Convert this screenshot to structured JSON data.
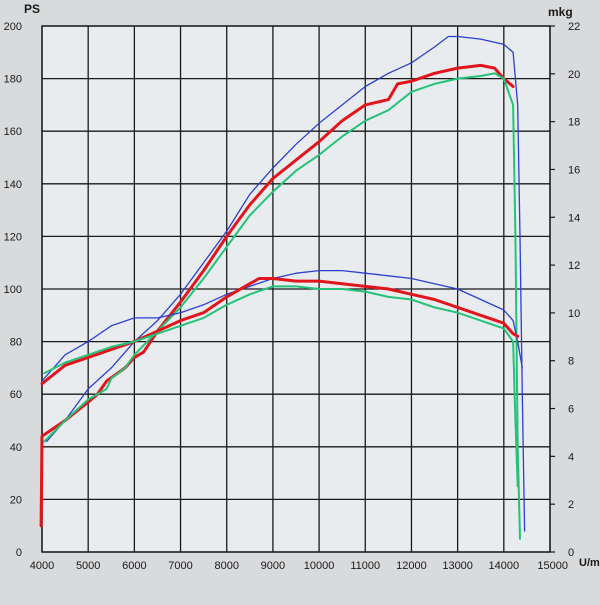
{
  "chart_data": {
    "type": "line",
    "left_axis_unit": "PS",
    "right_axis_unit": "mkg",
    "x_unit": "U/min",
    "x_ticks": [
      "4000",
      "5000",
      "6000",
      "7000",
      "8000",
      "9000",
      "10000",
      "11000",
      "12000",
      "13000",
      "14000",
      "15000"
    ],
    "y_left_ticks": [
      "0",
      "20",
      "40",
      "60",
      "80",
      "100",
      "120",
      "140",
      "160",
      "180",
      "200"
    ],
    "y_right_ticks": [
      "0",
      "2",
      "4",
      "6",
      "8",
      "10",
      "12",
      "14",
      "16",
      "18",
      "20",
      "22"
    ],
    "xlim": [
      4000,
      15000
    ],
    "ylim_left": [
      0,
      200
    ],
    "ylim_right": [
      0,
      22
    ],
    "grid": true,
    "colors": {
      "blue": "#2c3fd0",
      "red": "#e0161c",
      "green": "#25c27a",
      "grid": "#1a1a1a",
      "plot_bg": "#e9ecee"
    },
    "series": [
      {
        "color": "blue",
        "width": 1.3,
        "axis": "left",
        "points": [
          [
            4100,
            42
          ],
          [
            4500,
            50
          ],
          [
            5000,
            62
          ],
          [
            5500,
            70
          ],
          [
            6000,
            80
          ],
          [
            6500,
            88
          ],
          [
            7000,
            98
          ],
          [
            7500,
            110
          ],
          [
            8000,
            122
          ],
          [
            8500,
            136
          ],
          [
            9000,
            146
          ],
          [
            9500,
            155
          ],
          [
            10000,
            163
          ],
          [
            10500,
            170
          ],
          [
            11000,
            177
          ],
          [
            11500,
            182
          ],
          [
            12000,
            186
          ],
          [
            12500,
            192
          ],
          [
            12800,
            196
          ],
          [
            13000,
            196
          ],
          [
            13500,
            195
          ],
          [
            14000,
            193
          ],
          [
            14200,
            190
          ],
          [
            14300,
            170
          ],
          [
            14350,
            120
          ],
          [
            14400,
            60
          ],
          [
            14450,
            8
          ]
        ]
      },
      {
        "color": "red",
        "width": 3,
        "axis": "left",
        "points": [
          [
            3980,
            10
          ],
          [
            4000,
            44
          ],
          [
            4500,
            50
          ],
          [
            5000,
            57
          ],
          [
            5200,
            60
          ],
          [
            5400,
            65
          ],
          [
            5800,
            70
          ],
          [
            6000,
            74
          ],
          [
            6200,
            76
          ],
          [
            6500,
            84
          ],
          [
            7000,
            95
          ],
          [
            7500,
            107
          ],
          [
            8000,
            120
          ],
          [
            8500,
            132
          ],
          [
            9000,
            142
          ],
          [
            9500,
            149
          ],
          [
            10000,
            156
          ],
          [
            10500,
            164
          ],
          [
            11000,
            170
          ],
          [
            11500,
            172
          ],
          [
            11700,
            178
          ],
          [
            12000,
            179
          ],
          [
            12500,
            182
          ],
          [
            13000,
            184
          ],
          [
            13500,
            185
          ],
          [
            13800,
            184
          ],
          [
            14000,
            180
          ],
          [
            14200,
            177
          ]
        ]
      },
      {
        "color": "green",
        "width": 2,
        "axis": "left",
        "points": [
          [
            4050,
            42
          ],
          [
            4500,
            50
          ],
          [
            5000,
            58
          ],
          [
            5400,
            62
          ],
          [
            5500,
            66
          ],
          [
            5800,
            70
          ],
          [
            6000,
            75
          ],
          [
            6500,
            84
          ],
          [
            7000,
            93
          ],
          [
            7500,
            104
          ],
          [
            8000,
            116
          ],
          [
            8500,
            128
          ],
          [
            9000,
            137
          ],
          [
            9500,
            145
          ],
          [
            10000,
            151
          ],
          [
            10500,
            158
          ],
          [
            11000,
            164
          ],
          [
            11500,
            168
          ],
          [
            12000,
            175
          ],
          [
            12500,
            178
          ],
          [
            13000,
            180
          ],
          [
            13500,
            181
          ],
          [
            13800,
            182
          ],
          [
            14000,
            180
          ],
          [
            14200,
            170
          ],
          [
            14250,
            120
          ],
          [
            14300,
            40
          ],
          [
            14350,
            5
          ]
        ]
      },
      {
        "color": "blue",
        "width": 1.3,
        "axis": "left",
        "points": [
          [
            4000,
            65
          ],
          [
            4500,
            75
          ],
          [
            5000,
            80
          ],
          [
            5500,
            86
          ],
          [
            6000,
            89
          ],
          [
            6500,
            89
          ],
          [
            7000,
            91
          ],
          [
            7500,
            94
          ],
          [
            8000,
            98
          ],
          [
            8500,
            101
          ],
          [
            9000,
            104
          ],
          [
            9500,
            106
          ],
          [
            10000,
            107
          ],
          [
            10500,
            107
          ],
          [
            11000,
            106
          ],
          [
            11500,
            105
          ],
          [
            12000,
            104
          ],
          [
            12500,
            102
          ],
          [
            13000,
            100
          ],
          [
            13500,
            96
          ],
          [
            14000,
            92
          ],
          [
            14200,
            88
          ],
          [
            14300,
            80
          ],
          [
            14400,
            70
          ]
        ]
      },
      {
        "color": "red",
        "width": 3,
        "axis": "left",
        "points": [
          [
            4000,
            64
          ],
          [
            4500,
            71
          ],
          [
            5000,
            74
          ],
          [
            5500,
            77
          ],
          [
            6000,
            80
          ],
          [
            6500,
            84
          ],
          [
            7000,
            88
          ],
          [
            7500,
            91
          ],
          [
            8000,
            97
          ],
          [
            8500,
            102
          ],
          [
            8700,
            104
          ],
          [
            9000,
            104
          ],
          [
            9500,
            103
          ],
          [
            10000,
            103
          ],
          [
            10500,
            102
          ],
          [
            11000,
            101
          ],
          [
            11500,
            100
          ],
          [
            12000,
            98
          ],
          [
            12500,
            96
          ],
          [
            13000,
            93
          ],
          [
            13500,
            90
          ],
          [
            14000,
            87
          ],
          [
            14200,
            83
          ],
          [
            14300,
            82
          ]
        ]
      },
      {
        "color": "green",
        "width": 2,
        "axis": "left",
        "points": [
          [
            4050,
            68
          ],
          [
            4500,
            72
          ],
          [
            5000,
            75
          ],
          [
            5500,
            78
          ],
          [
            6000,
            80
          ],
          [
            6500,
            83
          ],
          [
            7000,
            86
          ],
          [
            7500,
            89
          ],
          [
            8000,
            94
          ],
          [
            8500,
            98
          ],
          [
            9000,
            101
          ],
          [
            9500,
            101
          ],
          [
            10000,
            100
          ],
          [
            10500,
            100
          ],
          [
            11000,
            99
          ],
          [
            11500,
            97
          ],
          [
            12000,
            96
          ],
          [
            12500,
            93
          ],
          [
            13000,
            91
          ],
          [
            13500,
            88
          ],
          [
            14000,
            85
          ],
          [
            14200,
            80
          ],
          [
            14250,
            50
          ],
          [
            14300,
            25
          ]
        ]
      }
    ]
  }
}
